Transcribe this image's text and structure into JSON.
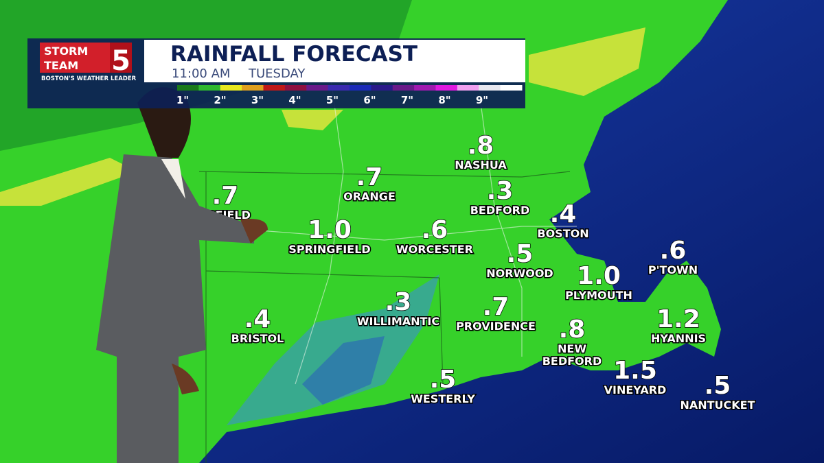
{
  "header": {
    "logo_line1": "STORM",
    "logo_line2": "TEAM",
    "logo_number": "5",
    "logo_tagline": "BOSTON'S WEATHER LEADER",
    "title": "RAINFALL FORECAST",
    "time": "11:00 AM",
    "day": "TUESDAY"
  },
  "legend": {
    "labels": [
      "1\"",
      "2\"",
      "3\"",
      "4\"",
      "5\"",
      "6\"",
      "7\"",
      "8\"",
      "9\""
    ]
  },
  "locations": [
    {
      "amount": ".8",
      "name": [
        "NASHUA"
      ]
    },
    {
      "amount": ".7",
      "name": [
        "ORANGE"
      ]
    },
    {
      "amount": ".7",
      "name": [
        "TSFIELD"
      ]
    },
    {
      "amount": ".3",
      "name": [
        "BEDFORD"
      ]
    },
    {
      "amount": ".4",
      "name": [
        "BOSTON"
      ]
    },
    {
      "amount": "1.0",
      "name": [
        "SPRINGFIELD"
      ]
    },
    {
      "amount": ".6",
      "name": [
        "WORCESTER"
      ]
    },
    {
      "amount": ".5",
      "name": [
        "NORWOOD"
      ]
    },
    {
      "amount": ".6",
      "name": [
        "P'TOWN"
      ]
    },
    {
      "amount": "1.0",
      "name": [
        "PLYMOUTH"
      ]
    },
    {
      "amount": ".3",
      "name": [
        "WILLIMANTIC"
      ]
    },
    {
      "amount": ".7",
      "name": [
        "PROVIDENCE"
      ]
    },
    {
      "amount": ".4",
      "name": [
        "BRISTOL"
      ]
    },
    {
      "amount": ".8",
      "name": [
        "NEW",
        "BEDFORD"
      ]
    },
    {
      "amount": "1.2",
      "name": [
        "HYANNIS"
      ]
    },
    {
      "amount": "1.5",
      "name": [
        "VINEYARD"
      ]
    },
    {
      "amount": ".5",
      "name": [
        "WESTERLY"
      ]
    },
    {
      "amount": ".5",
      "name": [
        "NANTUCKET"
      ]
    }
  ]
}
